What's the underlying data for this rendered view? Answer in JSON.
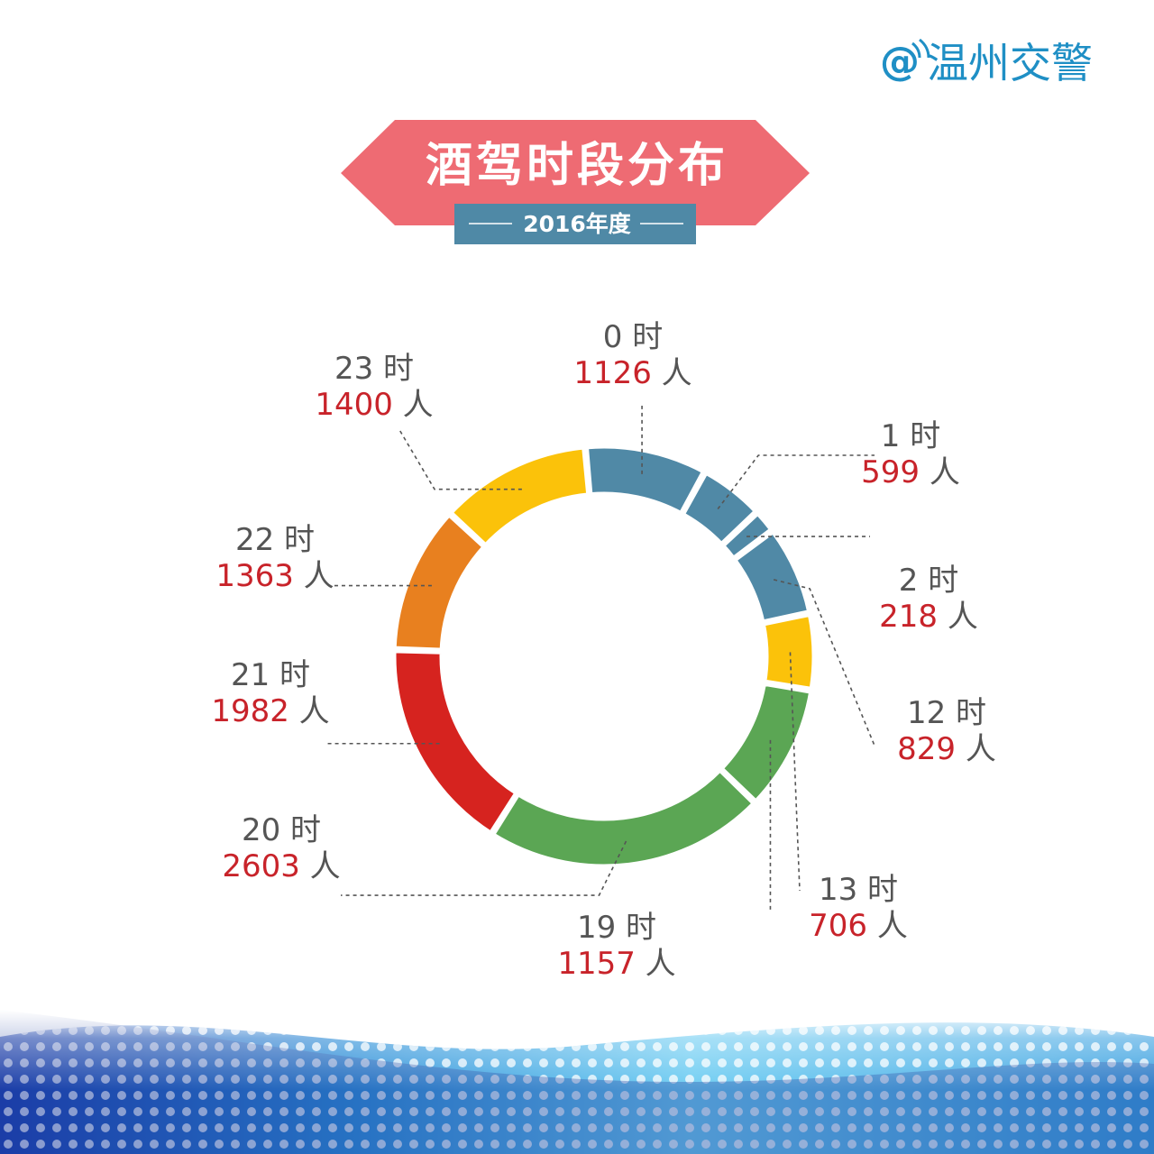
{
  "brand": {
    "at": "@",
    "name": "温州交警"
  },
  "header": {
    "title": "酒驾时段分布",
    "subtitle": "2016年度"
  },
  "colors": {
    "blue": "#5089a6",
    "yellow": "#fbc20a",
    "orange": "#e8801f",
    "red": "#d6231f",
    "green": "#5ba654",
    "banner": "#ee6b73",
    "subtitle_bg": "#4f89a6",
    "value_text": "#c8232a",
    "hour_text": "#555555"
  },
  "chart_data": {
    "type": "donut",
    "hour_suffix": "时",
    "count_suffix": "人",
    "slices": [
      {
        "hour": "0",
        "count": "1126",
        "value": 1126,
        "color": "blue"
      },
      {
        "hour": "1",
        "count": "599",
        "value": 599,
        "color": "blue"
      },
      {
        "hour": "2",
        "count": "218",
        "value": 218,
        "color": "blue"
      },
      {
        "hour": "12",
        "count": "829",
        "value": 829,
        "color": "blue"
      },
      {
        "hour": "13",
        "count": "706",
        "value": 706,
        "color": "yellow"
      },
      {
        "hour": "19",
        "count": "1157",
        "value": 1157,
        "color": "green"
      },
      {
        "hour": "20",
        "count": "2603",
        "value": 2603,
        "color": "green"
      },
      {
        "hour": "21",
        "count": "1982",
        "value": 1982,
        "color": "red"
      },
      {
        "hour": "22",
        "count": "1363",
        "value": 1363,
        "color": "orange"
      },
      {
        "hour": "23",
        "count": "1400",
        "value": 1400,
        "color": "yellow"
      }
    ]
  }
}
